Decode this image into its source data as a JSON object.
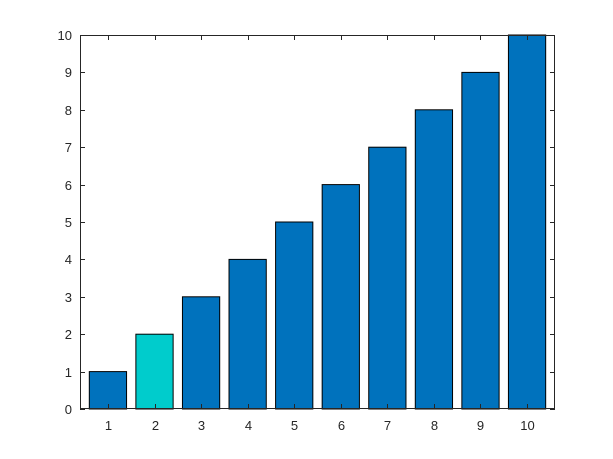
{
  "chart_data": {
    "type": "bar",
    "title": "",
    "xlabel": "",
    "ylabel": "",
    "categories": [
      "1",
      "2",
      "3",
      "4",
      "5",
      "6",
      "7",
      "8",
      "9",
      "10"
    ],
    "values": [
      1,
      2,
      3,
      4,
      5,
      6,
      7,
      8,
      9,
      10
    ],
    "ylim": [
      0,
      10
    ],
    "yticks": [
      0,
      1,
      2,
      3,
      4,
      5,
      6,
      7,
      8,
      9,
      10
    ],
    "grid": false,
    "legend": "none",
    "colors": {
      "default_bar": "#0072BD",
      "highlight_bar": "#00CCCC",
      "bar_edge": "#000000",
      "axis": "#262626",
      "background": "#FFFFFF"
    },
    "highlighted_category": "2"
  }
}
